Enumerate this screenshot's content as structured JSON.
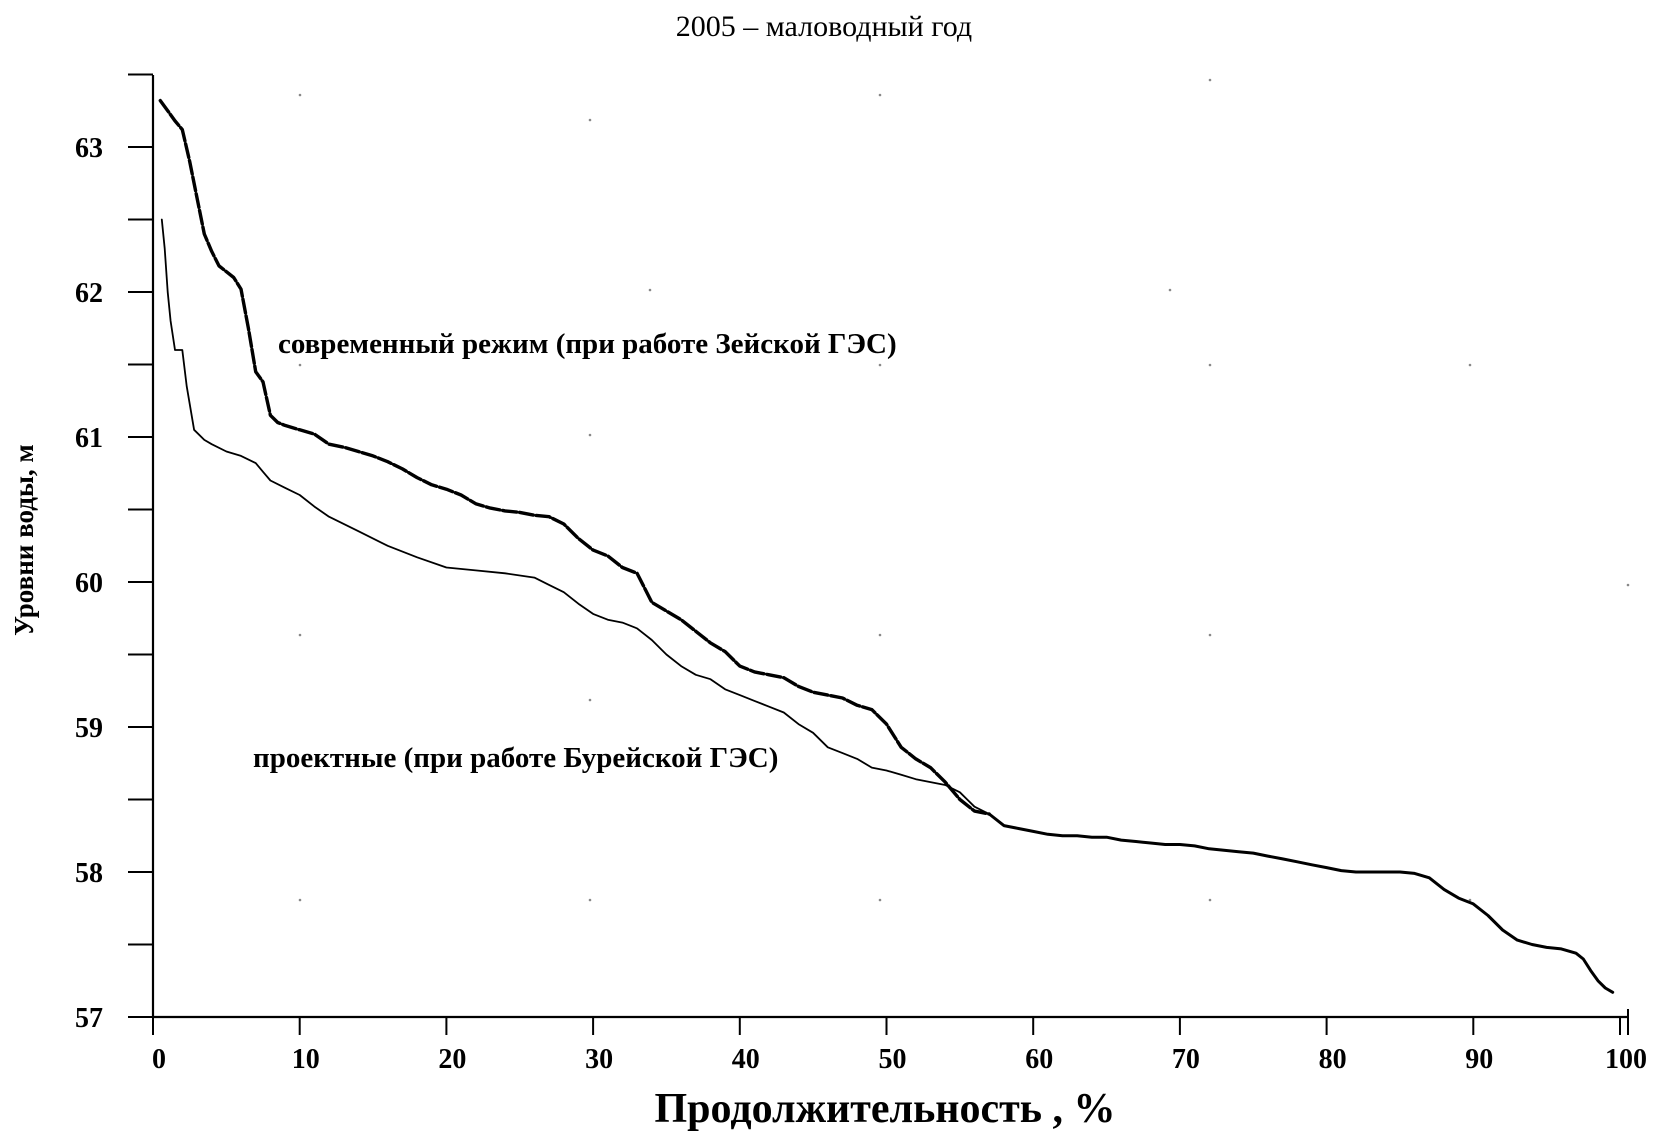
{
  "chart_data": {
    "type": "line",
    "title": "2005 – маловодный год",
    "xlabel": "Продолжительность ,  %",
    "ylabel": "Уровни воды, м",
    "xlim": [
      0,
      100
    ],
    "ylim": [
      57,
      63.5
    ],
    "grid": false,
    "x_tick_labels": [
      "0",
      "10",
      "20",
      "30",
      "40",
      "50",
      "60",
      "70",
      "80",
      "90",
      "100"
    ],
    "x_tick_values": [
      0,
      10,
      20,
      30,
      40,
      50,
      60,
      70,
      80,
      90,
      100
    ],
    "y_tick_labels": [
      "57",
      "58",
      "59",
      "60",
      "61",
      "62",
      "63"
    ],
    "y_tick_values": [
      57,
      58,
      59,
      60,
      61,
      62,
      63
    ],
    "annotations": [
      {
        "text": "современный режим (при работе Зейской ГЭС)",
        "series_index": 0
      },
      {
        "text": "проектные (при работе Бурейской ГЭС)",
        "series_index": 1
      }
    ],
    "series": [
      {
        "style": "dashed-bold",
        "color": "#000000",
        "x": [
          0.5,
          1,
          1.5,
          2,
          2.5,
          3,
          3.5,
          4,
          4.5,
          5,
          5.5,
          6,
          6.5,
          7,
          7.5,
          8,
          8.5,
          9,
          10,
          11,
          12,
          13,
          14,
          15,
          16,
          17,
          18,
          19,
          20,
          21,
          22,
          23,
          24,
          25,
          26,
          27,
          28,
          29,
          30,
          31,
          32,
          33,
          34,
          35,
          36,
          37,
          38,
          39,
          40,
          41,
          42,
          43,
          44,
          45,
          46,
          47,
          48,
          49,
          50,
          51,
          52,
          53,
          54,
          55,
          56,
          57
        ],
        "y": [
          63.32,
          63.25,
          63.18,
          63.12,
          62.9,
          62.65,
          62.4,
          62.28,
          62.18,
          62.14,
          62.1,
          62.02,
          61.75,
          61.45,
          61.38,
          61.15,
          61.1,
          61.08,
          61.05,
          61.02,
          60.95,
          60.93,
          60.9,
          60.87,
          60.83,
          60.78,
          60.72,
          60.67,
          60.64,
          60.6,
          60.54,
          60.51,
          60.49,
          60.48,
          60.46,
          60.45,
          60.4,
          60.3,
          60.22,
          60.18,
          60.1,
          60.06,
          59.86,
          59.8,
          59.74,
          59.66,
          59.58,
          59.52,
          59.42,
          59.38,
          59.36,
          59.34,
          59.28,
          59.24,
          59.22,
          59.2,
          59.15,
          59.12,
          59.02,
          58.86,
          58.78,
          58.72,
          58.62,
          58.5,
          58.42,
          58.4
        ]
      },
      {
        "style": "solid-thin",
        "color": "#000000",
        "x": [
          0.6,
          0.8,
          1,
          1.2,
          1.5,
          2,
          2.3,
          2.8,
          3.5,
          4,
          5,
          6,
          7,
          7.5,
          8,
          9,
          10,
          11,
          12,
          14,
          16,
          18,
          20,
          22,
          24,
          26,
          27,
          28,
          29,
          30,
          31,
          32,
          33,
          34,
          35,
          36,
          37,
          38,
          39,
          40,
          41,
          42,
          43,
          44,
          45,
          46,
          47,
          48,
          49,
          50,
          51,
          52,
          53,
          54,
          55,
          55.5,
          56,
          57
        ],
        "y": [
          62.5,
          62.3,
          62.0,
          61.8,
          61.6,
          61.6,
          61.35,
          61.05,
          60.98,
          60.95,
          60.9,
          60.87,
          60.82,
          60.76,
          60.7,
          60.65,
          60.6,
          60.52,
          60.45,
          60.35,
          60.25,
          60.17,
          60.1,
          60.08,
          60.06,
          60.03,
          59.98,
          59.93,
          59.85,
          59.78,
          59.74,
          59.72,
          59.68,
          59.6,
          59.5,
          59.42,
          59.36,
          59.33,
          59.26,
          59.22,
          59.18,
          59.14,
          59.1,
          59.02,
          58.96,
          58.86,
          58.82,
          58.78,
          58.72,
          58.7,
          58.67,
          58.64,
          58.62,
          58.6,
          58.55,
          58.5,
          58.45,
          58.4
        ]
      },
      {
        "style": "solid-bold",
        "color": "#000000",
        "x": [
          57,
          58,
          59,
          60,
          61,
          62,
          63,
          64,
          65,
          66,
          67,
          68,
          69,
          70,
          71,
          72,
          73,
          74,
          75,
          76,
          77,
          78,
          79,
          80,
          81,
          82,
          83,
          84,
          85,
          86,
          87,
          88,
          89,
          90,
          91,
          92,
          93,
          94,
          95,
          96,
          97,
          97.5,
          98,
          98.5,
          99,
          99.5
        ],
        "y": [
          58.4,
          58.32,
          58.3,
          58.28,
          58.26,
          58.25,
          58.25,
          58.24,
          58.24,
          58.22,
          58.21,
          58.2,
          58.19,
          58.19,
          58.18,
          58.16,
          58.15,
          58.14,
          58.13,
          58.11,
          58.09,
          58.07,
          58.05,
          58.03,
          58.01,
          58.0,
          58.0,
          58.0,
          58.0,
          57.99,
          57.96,
          57.88,
          57.82,
          57.78,
          57.7,
          57.6,
          57.53,
          57.5,
          57.48,
          57.47,
          57.44,
          57.4,
          57.32,
          57.25,
          57.2,
          57.17
        ]
      }
    ]
  }
}
